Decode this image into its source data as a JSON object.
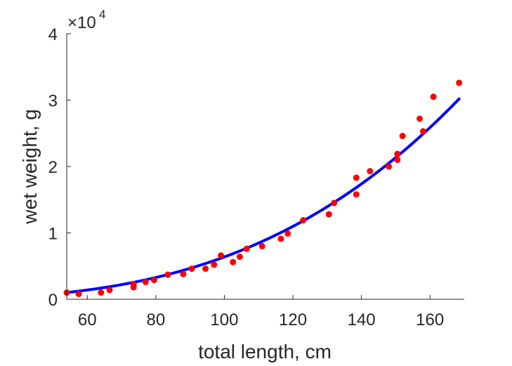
{
  "chart_data": {
    "type": "scatter",
    "title": "",
    "xlabel": "total length, cm",
    "ylabel": "wet weight, g",
    "xlim": [
      54,
      170
    ],
    "ylim": [
      0,
      40000
    ],
    "x_ticks": [
      60,
      80,
      100,
      120,
      140,
      160
    ],
    "y_ticks": [
      0,
      10000,
      20000,
      30000,
      40000
    ],
    "y_tick_labels": [
      "0",
      "1",
      "2",
      "3",
      "4"
    ],
    "y_exponent_label": "×10",
    "y_exponent_power": "4",
    "grid": false,
    "legend": "none",
    "series": [
      {
        "kind": "points",
        "color": "#ff0000",
        "points": [
          [
            54,
            1000
          ],
          [
            57.5,
            800
          ],
          [
            64,
            1000
          ],
          [
            66.5,
            1400
          ],
          [
            73.5,
            1800
          ],
          [
            73.5,
            2300
          ],
          [
            77,
            2600
          ],
          [
            79.5,
            2900
          ],
          [
            83.5,
            3700
          ],
          [
            88,
            3800
          ],
          [
            90.5,
            4600
          ],
          [
            94.5,
            4600
          ],
          [
            97,
            5200
          ],
          [
            99,
            6600
          ],
          [
            102.5,
            5600
          ],
          [
            104.5,
            6400
          ],
          [
            106.5,
            7600
          ],
          [
            111,
            8000
          ],
          [
            116.5,
            9100
          ],
          [
            118.5,
            9900
          ],
          [
            123,
            11900
          ],
          [
            130.5,
            12800
          ],
          [
            132,
            14500
          ],
          [
            138.5,
            15800
          ],
          [
            138.5,
            18300
          ],
          [
            142.5,
            19300
          ],
          [
            148,
            20000
          ],
          [
            150.5,
            21000
          ],
          [
            150.5,
            21900
          ],
          [
            152,
            24600
          ],
          [
            157,
            27200
          ],
          [
            158,
            25300
          ],
          [
            161,
            30500
          ],
          [
            168.5,
            32600
          ]
        ]
      },
      {
        "kind": "fit-curve",
        "color": "#0000ff",
        "model": "power",
        "coefficient": 0.00699,
        "exponent": 2.98,
        "x_range": [
          54,
          168.5
        ]
      }
    ]
  }
}
